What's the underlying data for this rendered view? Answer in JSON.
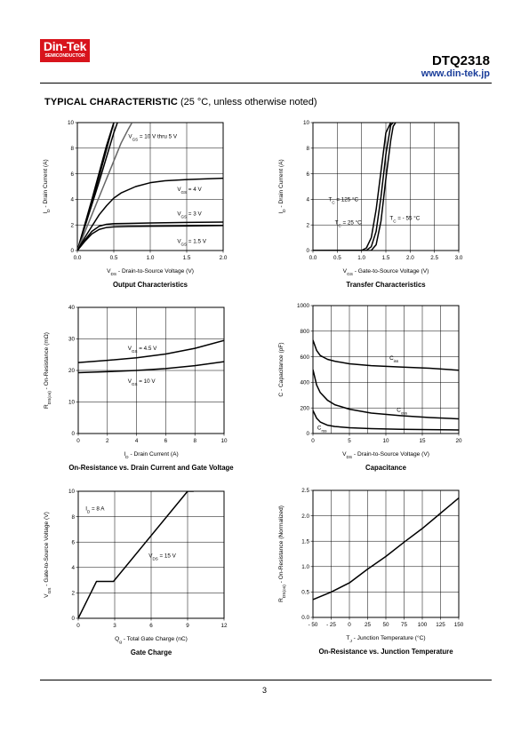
{
  "header": {
    "logo_main": "Din-Tek",
    "logo_sub": "SEMICONDUCTOR",
    "part_number": "DTQ2318",
    "website": "www.din-tek.jp"
  },
  "section": {
    "title_bold": "TYPICAL CHARACTERISTIC",
    "title_note": "(25 °C, unless otherwise noted)"
  },
  "footer": {
    "page_number": "3"
  },
  "colors": {
    "curve": "#000000",
    "curve_gray": "#666666",
    "logo_bg": "#d8141c",
    "link": "#1a3d9a"
  },
  "chart_data": [
    {
      "id": "output",
      "type": "line",
      "title": "Output Characteristics",
      "xlabel": {
        "main": "V",
        "sub": "DS",
        "rest": " - Drain-to-Source Voltage (V)"
      },
      "ylabel": {
        "main": "I",
        "sub": "D",
        "rest": " - Drain Current (A)"
      },
      "xlim": [
        0,
        2.0
      ],
      "ylim": [
        0,
        10
      ],
      "xticks": [
        0,
        0.5,
        1.0,
        1.5,
        2.0
      ],
      "xtick_labels": [
        "0.0",
        "0.5",
        "1.0",
        "1.5",
        "2.0"
      ],
      "yticks": [
        0,
        2,
        4,
        6,
        8,
        10
      ],
      "ytick_labels": [
        "0",
        "2",
        "4",
        "6",
        "8",
        "10"
      ],
      "xgrid": [
        0.5,
        1.0,
        1.5
      ],
      "ygrid": [
        2,
        4,
        6,
        8
      ],
      "series": [
        {
          "x": [
            0,
            0.1,
            0.2,
            0.3,
            0.4,
            0.5
          ],
          "y": [
            0,
            2.0,
            4.0,
            6.1,
            8.2,
            10
          ],
          "gray": false
        },
        {
          "x": [
            0,
            0.1,
            0.2,
            0.3,
            0.4,
            0.5
          ],
          "y": [
            0,
            1.9,
            3.8,
            5.8,
            7.9,
            10
          ],
          "gray": false
        },
        {
          "x": [
            0,
            0.1,
            0.2,
            0.3,
            0.4,
            0.5,
            0.55
          ],
          "y": [
            0,
            1.8,
            3.6,
            5.4,
            7.3,
            9.2,
            10
          ],
          "gray": false
        },
        {
          "x": [
            0,
            0.1,
            0.2,
            0.3,
            0.4,
            0.5,
            0.6,
            0.7,
            0.75
          ],
          "y": [
            0,
            1.4,
            2.8,
            4.2,
            5.6,
            7.0,
            8.4,
            9.5,
            10
          ],
          "gray": true
        },
        {
          "x": [
            0,
            0.1,
            0.2,
            0.3,
            0.4,
            0.5,
            0.6,
            0.8,
            1.0,
            1.2,
            1.5,
            2.0
          ],
          "y": [
            0,
            1.0,
            1.9,
            2.8,
            3.5,
            4.1,
            4.5,
            5.0,
            5.3,
            5.45,
            5.55,
            5.65
          ],
          "gray": false
        },
        {
          "x": [
            0,
            0.1,
            0.2,
            0.3,
            0.4,
            0.5,
            0.7,
            1.0,
            1.5,
            2.0
          ],
          "y": [
            0,
            0.8,
            1.5,
            1.9,
            2.05,
            2.1,
            2.12,
            2.15,
            2.2,
            2.22
          ],
          "gray": false
        },
        {
          "x": [
            0,
            0.1,
            0.2,
            0.3,
            0.4,
            0.5,
            0.7,
            1.0,
            1.5,
            2.0
          ],
          "y": [
            0,
            0.7,
            1.3,
            1.65,
            1.8,
            1.85,
            1.88,
            1.9,
            1.92,
            1.95
          ],
          "gray": false
        }
      ],
      "annotations": [
        {
          "x": 0.7,
          "y": 8.8,
          "main": "V",
          "sub": "GS",
          "rest": " = 10 V thru 5 V"
        },
        {
          "x": 1.37,
          "y": 4.65,
          "main": "V",
          "sub": "GS",
          "rest": " = 4 V"
        },
        {
          "x": 1.37,
          "y": 2.75,
          "main": "V",
          "sub": "GS",
          "rest": " = 3 V"
        },
        {
          "x": 1.37,
          "y": 0.6,
          "main": "V",
          "sub": "GS",
          "rest": " = 1.5 V"
        }
      ]
    },
    {
      "id": "transfer",
      "type": "line",
      "title": "Transfer Characteristics",
      "xlabel": {
        "main": "V",
        "sub": "GS",
        "rest": " - Gate-to-Source Voltage (V)"
      },
      "ylabel": {
        "main": "I",
        "sub": "D",
        "rest": " - Drain Current (A)"
      },
      "xlim": [
        0,
        3.0
      ],
      "ylim": [
        0,
        10
      ],
      "xticks": [
        0,
        0.5,
        1.0,
        1.5,
        2.0,
        2.5,
        3.0
      ],
      "xtick_labels": [
        "0.0",
        "0.5",
        "1.0",
        "1.5",
        "2.0",
        "2.5",
        "3.0"
      ],
      "yticks": [
        0,
        2,
        4,
        6,
        8,
        10
      ],
      "ytick_labels": [
        "0",
        "2",
        "4",
        "6",
        "8",
        "10"
      ],
      "xgrid": [
        0.5,
        1.0,
        1.5,
        2.0,
        2.5
      ],
      "ygrid": [
        2,
        4,
        6,
        8
      ],
      "series": [
        {
          "x": [
            0,
            1.0,
            1.1,
            1.2,
            1.3,
            1.4,
            1.5,
            1.6
          ],
          "y": [
            0,
            0.01,
            0.2,
            1.0,
            3.2,
            6.2,
            9.2,
            10
          ],
          "gray": false
        },
        {
          "x": [
            0,
            1.1,
            1.2,
            1.3,
            1.4,
            1.5,
            1.6,
            1.65
          ],
          "y": [
            0,
            0.01,
            0.3,
            1.5,
            4.2,
            7.5,
            9.8,
            10
          ],
          "gray": false
        },
        {
          "x": [
            0,
            1.2,
            1.3,
            1.4,
            1.5,
            1.6,
            1.65,
            1.7
          ],
          "y": [
            0,
            0.01,
            0.45,
            2.3,
            5.6,
            8.6,
            9.7,
            10
          ],
          "gray": false
        }
      ],
      "annotations": [
        {
          "x": 0.32,
          "y": 3.85,
          "main": "T",
          "sub": "C",
          "rest": " = 125 °C"
        },
        {
          "x": 0.45,
          "y": 2.05,
          "main": "T",
          "sub": "C",
          "rest": " = 25 °C"
        },
        {
          "x": 1.58,
          "y": 2.4,
          "main": "T",
          "sub": "C",
          "rest": " = - 55 °C"
        }
      ]
    },
    {
      "id": "on-resistance-current",
      "type": "line",
      "title": "On-Resistance vs. Drain Current and Gate Voltage",
      "xlabel": {
        "main": "I",
        "sub": "D",
        "rest": " - Drain Current (A)"
      },
      "ylabel": {
        "main": "R",
        "sub": "DS(on)",
        "rest": " - On-Resistance (mΩ)"
      },
      "xlim": [
        0,
        10
      ],
      "ylim": [
        0,
        40
      ],
      "xticks": [
        0,
        2,
        4,
        6,
        8,
        10
      ],
      "xtick_labels": [
        "0",
        "2",
        "4",
        "6",
        "8",
        "10"
      ],
      "yticks": [
        0,
        10,
        20,
        30,
        40
      ],
      "ytick_labels": [
        "0",
        "10",
        "20",
        "30",
        "40"
      ],
      "xgrid": [
        2,
        4,
        6,
        8
      ],
      "ygrid": [
        10,
        20,
        30
      ],
      "series": [
        {
          "x": [
            0,
            2,
            4,
            6,
            8,
            10
          ],
          "y": [
            22.5,
            23.2,
            24.0,
            25.2,
            27.0,
            29.5
          ],
          "gray": false
        },
        {
          "x": [
            0,
            2,
            4,
            6,
            8,
            10
          ],
          "y": [
            19.3,
            19.6,
            20.0,
            20.6,
            21.5,
            22.8
          ],
          "gray": false
        }
      ],
      "annotations": [
        {
          "x": 3.4,
          "y": 26.5,
          "main": "V",
          "sub": "GS",
          "rest": " = 4.5 V"
        },
        {
          "x": 3.4,
          "y": 16.0,
          "main": "V",
          "sub": "GS",
          "rest": " = 10 V"
        }
      ]
    },
    {
      "id": "capacitance",
      "type": "line",
      "title": "Capacitance",
      "xlabel": {
        "main": "V",
        "sub": "DS",
        "rest": " - Drain-to-Source Voltage (V)"
      },
      "ylabel": {
        "main": "C",
        "sub": "",
        "rest": " - Capacitance (pF)"
      },
      "xlim": [
        0,
        20
      ],
      "ylim": [
        0,
        1000
      ],
      "xticks": [
        0,
        5,
        10,
        15,
        20
      ],
      "xtick_labels": [
        "0",
        "5",
        "10",
        "15",
        "20"
      ],
      "yticks": [
        0,
        200,
        400,
        600,
        800,
        1000
      ],
      "ytick_labels": [
        "0",
        "200",
        "400",
        "600",
        "800",
        "1000"
      ],
      "xgrid": [
        2.5,
        5,
        7.5,
        10,
        12.5,
        15,
        17.5
      ],
      "ygrid": [
        200,
        400,
        600,
        800
      ],
      "series": [
        {
          "x": [
            0,
            0.5,
            1,
            2,
            3,
            5,
            8,
            12,
            16,
            20
          ],
          "y": [
            730,
            650,
            610,
            580,
            565,
            545,
            530,
            520,
            510,
            495
          ],
          "gray": false
        },
        {
          "x": [
            0,
            0.5,
            1,
            2,
            3,
            5,
            8,
            12,
            16,
            20
          ],
          "y": [
            500,
            380,
            320,
            260,
            225,
            190,
            160,
            140,
            125,
            115
          ],
          "gray": false
        },
        {
          "x": [
            0,
            0.5,
            1,
            2,
            3,
            5,
            8,
            12,
            16,
            20
          ],
          "y": [
            180,
            120,
            90,
            65,
            55,
            45,
            38,
            33,
            30,
            28
          ],
          "gray": false
        }
      ],
      "annotations": [
        {
          "x": 10.5,
          "y": 575,
          "main": "C",
          "sub": "iss",
          "rest": ""
        },
        {
          "x": 11.5,
          "y": 170,
          "main": "C",
          "sub": "oss",
          "rest": ""
        },
        {
          "x": 0.6,
          "y": 30,
          "main": "C",
          "sub": "rss",
          "rest": ""
        }
      ]
    },
    {
      "id": "gate-charge",
      "type": "line",
      "title": "Gate Charge",
      "xlabel": {
        "main": "Q",
        "sub": "g",
        "rest": " - Total Gate Charge (nC)"
      },
      "ylabel": {
        "main": "V",
        "sub": "GS",
        "rest": " - Gate-to-Source Voltage (V)"
      },
      "xlim": [
        0,
        12
      ],
      "ylim": [
        0,
        10
      ],
      "xticks": [
        0,
        3,
        6,
        9,
        12
      ],
      "xtick_labels": [
        "0",
        "3",
        "6",
        "9",
        "12"
      ],
      "yticks": [
        0,
        2,
        4,
        6,
        8,
        10
      ],
      "ytick_labels": [
        "0",
        "2",
        "4",
        "6",
        "8",
        "10"
      ],
      "xgrid": [
        3,
        6,
        9
      ],
      "ygrid": [
        2,
        4,
        6,
        8
      ],
      "series": [
        {
          "x": [
            0,
            1.5,
            2.9,
            9.0,
            9.5
          ],
          "y": [
            0,
            2.9,
            2.9,
            10,
            10
          ],
          "gray": false
        }
      ],
      "annotations": [
        {
          "x": 0.6,
          "y": 8.5,
          "main": "I",
          "sub": "D",
          "rest": " = 8 A"
        },
        {
          "x": 5.8,
          "y": 4.8,
          "main": "V",
          "sub": "DS",
          "rest": " = 15 V"
        }
      ]
    },
    {
      "id": "on-resistance-temperature",
      "type": "line",
      "title": "On-Resistance vs. Junction Temperature",
      "xlabel": {
        "main": "T",
        "sub": "J",
        "rest": " - Junction Temperature (°C)"
      },
      "ylabel": {
        "main": "R",
        "sub": "DS(on)",
        "rest": " - On-Resistance (Normalized)"
      },
      "xlim": [
        -50,
        150
      ],
      "ylim": [
        0,
        2.5
      ],
      "xticks": [
        -50,
        -25,
        0,
        25,
        50,
        75,
        100,
        125,
        150
      ],
      "xtick_labels": [
        "- 50",
        "- 25",
        "0",
        "25",
        "50",
        "75",
        "100",
        "125",
        "150"
      ],
      "yticks": [
        0,
        0.5,
        1.0,
        1.5,
        2.0,
        2.5
      ],
      "ytick_labels": [
        "0.0",
        "0.5",
        "1.0",
        "1.5",
        "2.0",
        "2.5"
      ],
      "xgrid": [
        -25,
        0,
        25,
        50,
        75,
        100,
        125
      ],
      "ygrid": [
        0.5,
        1.0,
        1.5,
        2.0
      ],
      "series": [
        {
          "x": [
            -50,
            -25,
            0,
            25,
            50,
            75,
            100,
            125,
            150
          ],
          "y": [
            0.35,
            0.5,
            0.68,
            0.95,
            1.2,
            1.48,
            1.75,
            2.05,
            2.35
          ],
          "gray": false
        }
      ],
      "annotations": []
    }
  ]
}
